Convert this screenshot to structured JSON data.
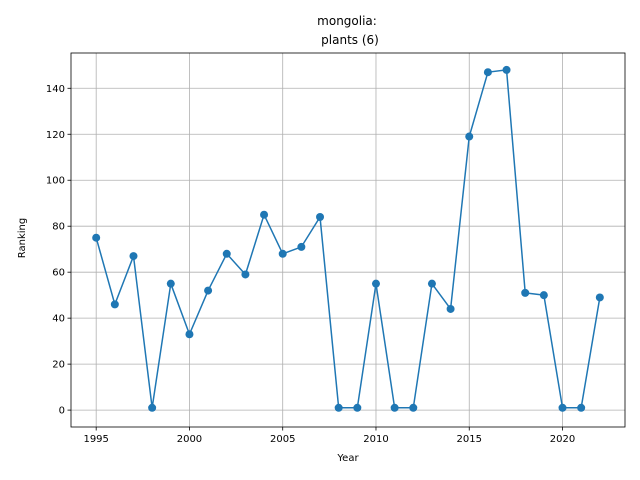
{
  "chart_data": {
    "type": "line",
    "title_line1": "mongolia:",
    "title_line2": "plants (6)",
    "xlabel": "Year",
    "ylabel": "Ranking",
    "xlim": [
      1993.65,
      2023.35
    ],
    "ylim": [
      -7.35,
      155.35
    ],
    "xticks": [
      1995,
      2000,
      2005,
      2010,
      2015,
      2020
    ],
    "yticks": [
      0,
      20,
      40,
      60,
      80,
      100,
      120,
      140
    ],
    "grid": true,
    "color": "#1f77b4",
    "marker": "circle",
    "x": [
      1995,
      1996,
      1997,
      1998,
      1999,
      2000,
      2001,
      2002,
      2003,
      2004,
      2005,
      2006,
      2007,
      2008,
      2009,
      2010,
      2011,
      2012,
      2013,
      2014,
      2015,
      2016,
      2017,
      2018,
      2019,
      2020,
      2021,
      2022
    ],
    "y": [
      75,
      46,
      67,
      1,
      55,
      33,
      52,
      68,
      59,
      85,
      68,
      71,
      84,
      1,
      1,
      55,
      1,
      1,
      55,
      44,
      119,
      147,
      148,
      51,
      50,
      1,
      1,
      49
    ]
  }
}
